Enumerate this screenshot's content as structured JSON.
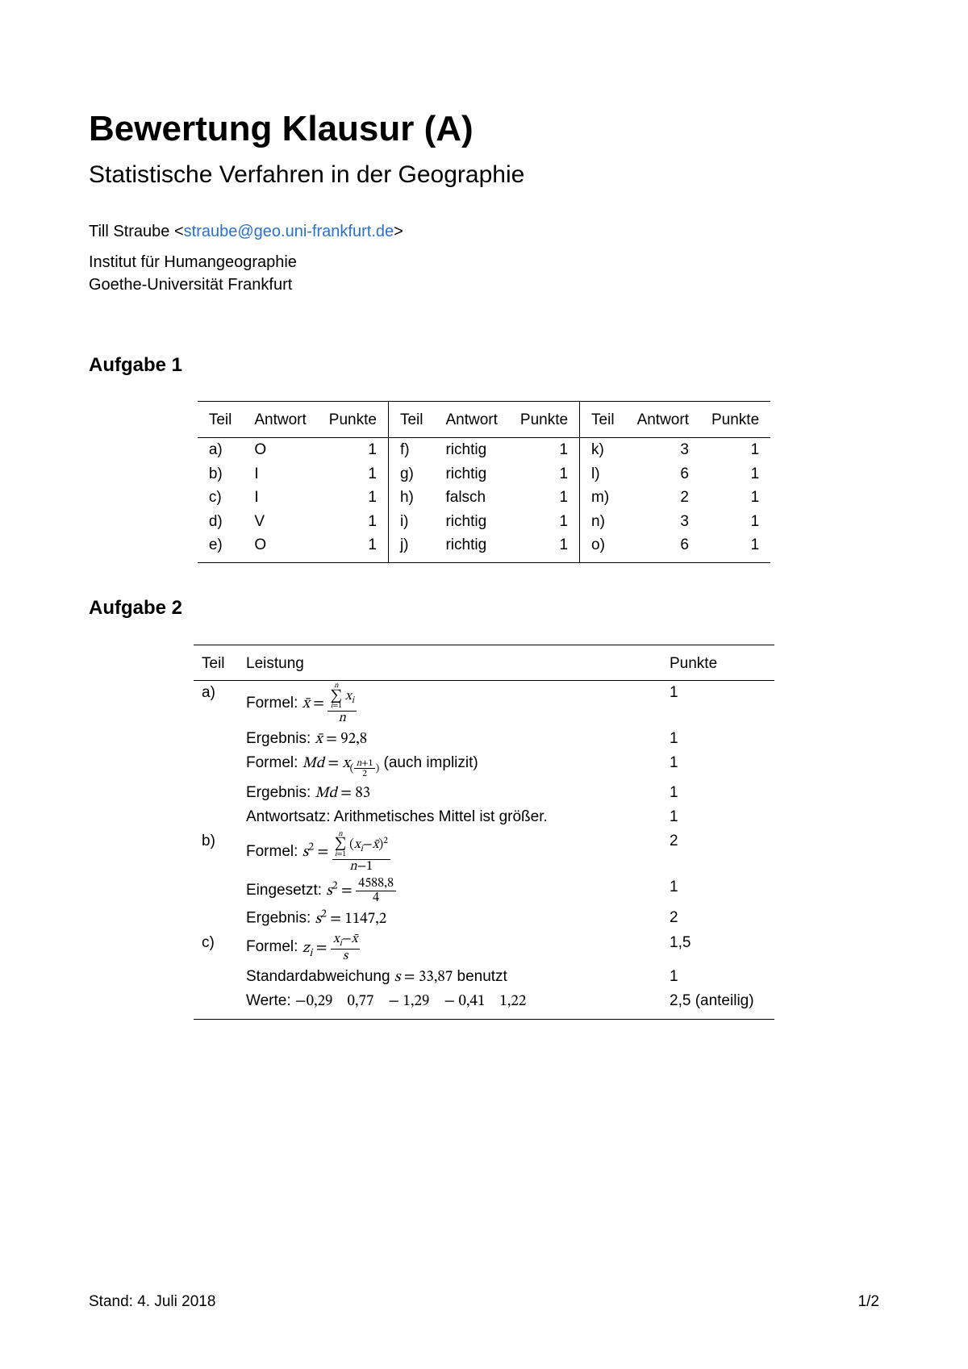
{
  "title": "Bewertung Klausur (A)",
  "subtitle": "Statistische Verfahren in der Geographie",
  "author_name": "Till Straube",
  "author_email": "straube@geo.uni-frankfurt.de",
  "affiliation_line1": "Institut für Humangeographie",
  "affiliation_line2": "Goethe-Universität Frankfurt",
  "aufgabe1": {
    "heading": "Aufgabe 1",
    "columns": [
      "Teil",
      "Antwort",
      "Punkte",
      "Teil",
      "Antwort",
      "Punkte",
      "Teil",
      "Antwort",
      "Punkte"
    ],
    "rows": [
      [
        "a)",
        "O",
        "1",
        "f)",
        "richtig",
        "1",
        "k)",
        "3",
        "1"
      ],
      [
        "b)",
        "I",
        "1",
        "g)",
        "richtig",
        "1",
        "l)",
        "6",
        "1"
      ],
      [
        "c)",
        "I",
        "1",
        "h)",
        "falsch",
        "1",
        "m)",
        "2",
        "1"
      ],
      [
        "d)",
        "V",
        "1",
        "i)",
        "richtig",
        "1",
        "n)",
        "3",
        "1"
      ],
      [
        "e)",
        "O",
        "1",
        "j)",
        "richtig",
        "1",
        "o)",
        "6",
        "1"
      ]
    ]
  },
  "aufgabe2": {
    "heading": "Aufgabe 2",
    "columns": [
      "Teil",
      "Leistung",
      "Punkte"
    ],
    "items": [
      {
        "part": "a)",
        "text_prefix": "Formel: ",
        "math": "xbar_formula",
        "points": "1"
      },
      {
        "part": "",
        "text_prefix": "Ergebnis: ",
        "math": "xbar_result",
        "points": "1"
      },
      {
        "part": "",
        "text_prefix": "Formel: ",
        "math": "md_formula",
        "text_suffix": " (auch implizit)",
        "points": "1"
      },
      {
        "part": "",
        "text_prefix": "Ergebnis: ",
        "math": "md_result",
        "points": "1"
      },
      {
        "part": "",
        "text_plain": "Antwortsatz: Arithmetisches Mittel ist größer.",
        "points": "1"
      },
      {
        "part": "b)",
        "text_prefix": "Formel: ",
        "math": "s2_formula",
        "points": "2"
      },
      {
        "part": "",
        "text_prefix": "Eingesetzt: ",
        "math": "s2_sub",
        "points": "1"
      },
      {
        "part": "",
        "text_prefix": "Ergebnis: ",
        "math": "s2_result",
        "points": "2"
      },
      {
        "part": "c)",
        "text_prefix": "Formel: ",
        "math": "z_formula",
        "points": "1,5"
      },
      {
        "part": "",
        "text_prefix": "Standardabweichung ",
        "math": "s_val",
        "text_suffix": " benutzt",
        "points": "1"
      },
      {
        "part": "",
        "text_prefix": "Werte: ",
        "math": "z_values",
        "points": "2,5 (anteilig)"
      }
    ],
    "math_values": {
      "xbar_result_val": "92,8",
      "md_result_val": "83",
      "s2_sub_num": "4588,8",
      "s2_sub_den": "4",
      "s2_result_val": "1147,2",
      "s_val_val": "33,87",
      "z_values_list": [
        "−0,29",
        "0,77",
        "− 1,29",
        "− 0,41",
        "1,22"
      ]
    }
  },
  "footer_date": "Stand: 4. Juli 2018",
  "footer_page": "1/2",
  "colors": {
    "text": "#000000",
    "link": "#2a72c9",
    "rule": "#000000",
    "background": "#ffffff"
  }
}
